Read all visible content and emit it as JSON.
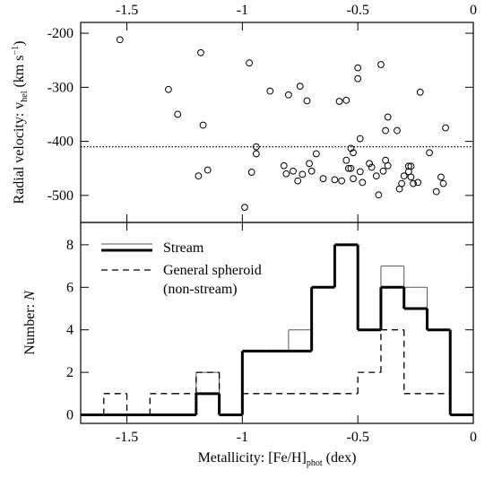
{
  "chart_data": [
    {
      "type": "scatter",
      "ylabel": {
        "text": "Radial velocity: v",
        "sub": "hel",
        "unit": " (km s",
        "sup": "−1",
        "close": ")"
      },
      "x": [
        -1.53,
        -1.32,
        -1.28,
        -1.18,
        -1.17,
        -1.19,
        -1.15,
        -0.97,
        -0.96,
        -0.94,
        -0.94,
        -0.99,
        -0.88,
        -0.82,
        -0.81,
        -0.8,
        -0.75,
        -0.78,
        -0.72,
        -0.71,
        -0.68,
        -0.7,
        -0.74,
        -0.76,
        -0.65,
        -0.6,
        -0.58,
        -0.57,
        -0.55,
        -0.54,
        -0.53,
        -0.52,
        -0.55,
        -0.52,
        -0.53,
        -0.49,
        -0.49,
        -0.45,
        -0.44,
        -0.42,
        -0.39,
        -0.37,
        -0.38,
        -0.38,
        -0.37,
        -0.33,
        -0.4,
        -0.5,
        -0.5,
        -0.48,
        -0.41,
        -0.31,
        -0.32,
        -0.3,
        -0.28,
        -0.28,
        -0.27,
        -0.26,
        -0.27,
        -0.24,
        -0.23,
        -0.19,
        -0.16,
        -0.14,
        -0.13,
        -0.12
      ],
      "y": [
        -212,
        -304,
        -350,
        -236,
        -370,
        -464,
        -453,
        -255,
        -457,
        -410,
        -423,
        -522,
        -307,
        -445,
        -460,
        -314,
        -298,
        -455,
        -325,
        -441,
        -423,
        -455,
        -461,
        -473,
        -469,
        -471,
        -326,
        -473,
        -324,
        -450,
        -450,
        -469,
        -435,
        -421,
        -413,
        -456,
        -395,
        -441,
        -448,
        -464,
        -455,
        -445,
        -435,
        -380,
        -355,
        -380,
        -258,
        -264,
        -284,
        -476,
        -499,
        -478,
        -488,
        -464,
        -446,
        -456,
        -466,
        -478,
        -446,
        -476,
        -309,
        -421,
        -493,
        -466,
        -478,
        -375
      ],
      "hline": -410,
      "xlim": [
        -1.7,
        0
      ],
      "xticks": [
        -1.5,
        -1,
        -0.5,
        0
      ],
      "xaxis_position": "top",
      "ylim": [
        -550,
        -180
      ],
      "yticks": [
        -500,
        -400,
        -300,
        -200
      ]
    },
    {
      "type": "histogram",
      "xlabel": {
        "text": "Metallicity: [Fe/H]",
        "sub": "phot",
        "unit": " (dex)"
      },
      "ylabel": {
        "text": "Number: ",
        "italic": "N"
      },
      "bins": [
        -1.7,
        -1.6,
        -1.5,
        -1.4,
        -1.3,
        -1.2,
        -1.1,
        -1.0,
        -0.9,
        -0.8,
        -0.7,
        -0.6,
        -0.5,
        -0.4,
        -0.3,
        -0.2,
        -0.1,
        0
      ],
      "series": [
        {
          "color": "#555555",
          "linewidth": 1,
          "values": [
            0,
            0,
            0,
            0,
            0,
            2,
            0,
            3,
            3,
            4,
            6,
            8,
            4,
            7,
            6,
            4,
            0
          ]
        },
        {
          "name": "Stream",
          "color": "#000000",
          "linewidth": 3,
          "values": [
            0,
            0,
            0,
            0,
            0,
            1,
            0,
            3,
            3,
            3,
            6,
            8,
            4,
            6,
            5,
            4,
            0
          ]
        },
        {
          "name": [
            "General spheroid",
            "(non-stream)"
          ],
          "color": "#000000",
          "linewidth": 1.3,
          "dashed": true,
          "values": [
            0,
            1,
            0,
            1,
            1,
            2,
            0,
            1,
            1,
            1,
            1,
            1,
            2,
            4,
            1,
            1,
            0
          ]
        }
      ],
      "xlim": [
        -1.7,
        0
      ],
      "xticks": [
        -1.5,
        -1,
        -0.5,
        0
      ],
      "xaxis_position": "bottom",
      "ylim": [
        -0.4,
        9.05
      ],
      "yticks": [
        0,
        2,
        4,
        6,
        8
      ]
    }
  ]
}
